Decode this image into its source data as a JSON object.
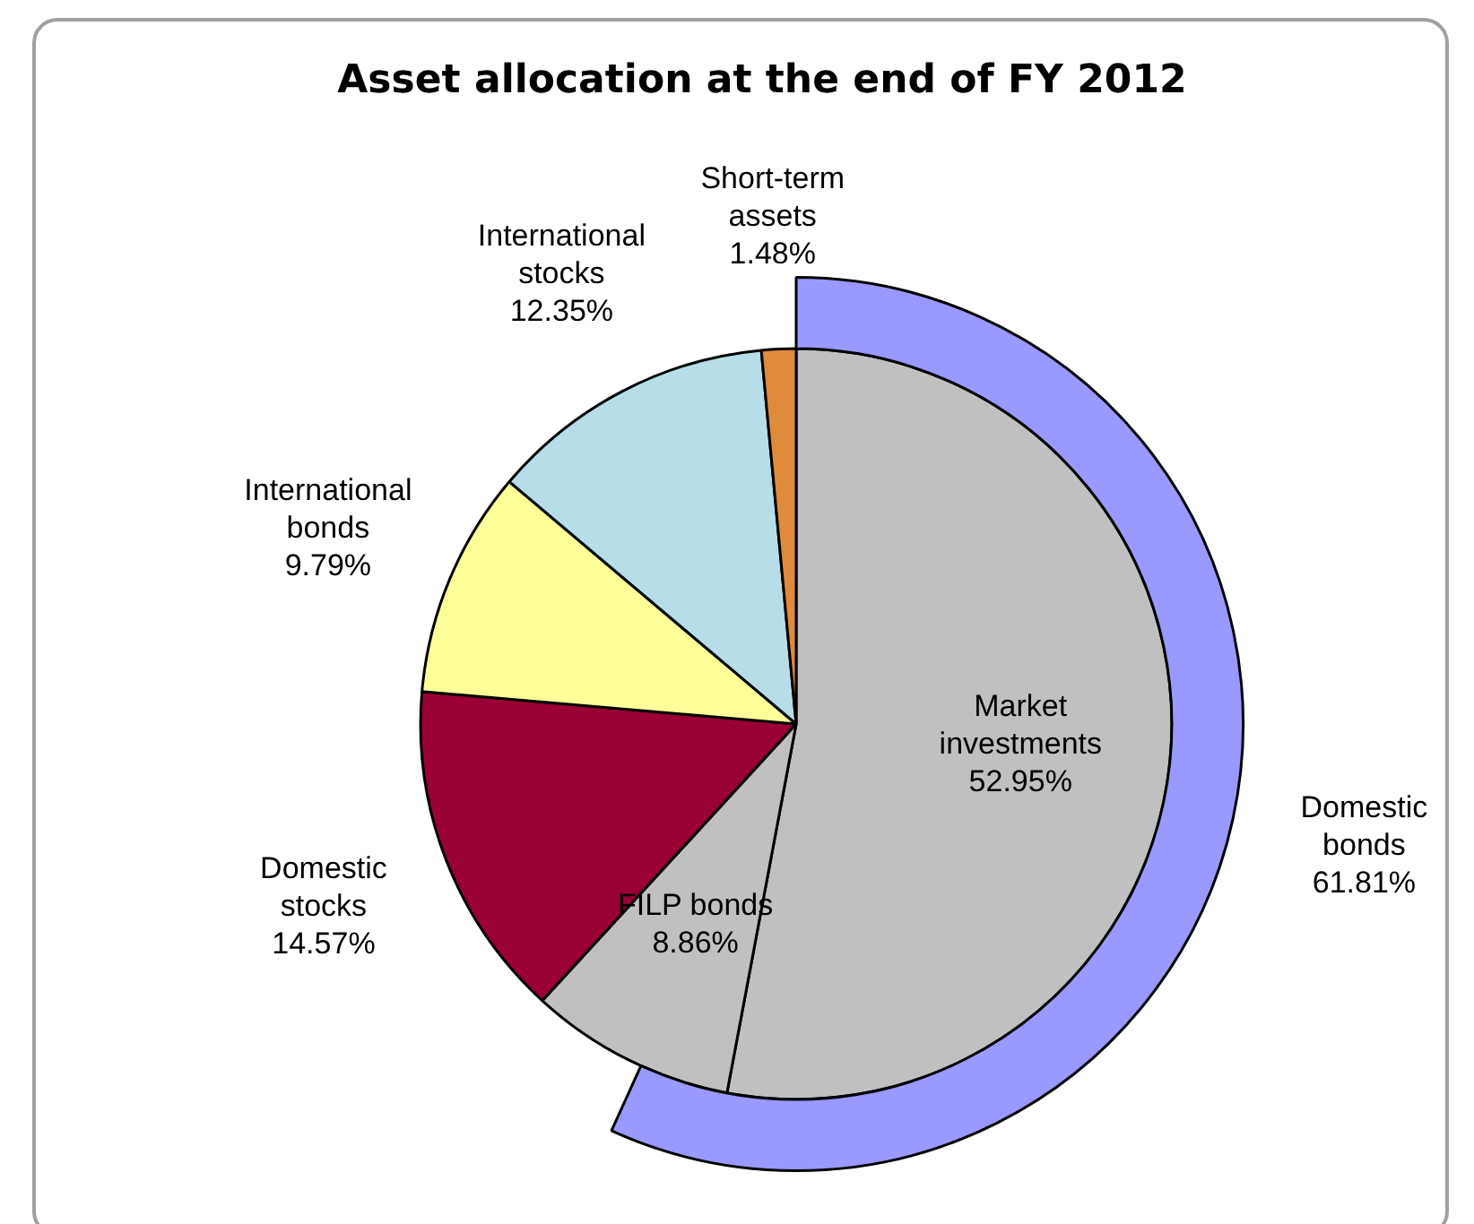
{
  "chart_data": {
    "type": "pie",
    "title": "Asset allocation at the end of FY 2012",
    "categories": [
      "Market investments",
      "FILP bonds",
      "Domestic stocks",
      "International bonds",
      "International stocks",
      "Short-term assets"
    ],
    "series": [
      {
        "type": "pie",
        "values": [
          52.95,
          8.86,
          14.57,
          9.79,
          12.35,
          1.48
        ],
        "colors": [
          "#c0c0c0",
          "#c0c0c0",
          "#990033",
          "#ffff99",
          "#b7dde8",
          "#e08a3c"
        ],
        "value_labels": [
          "52.95%",
          "8.86%",
          "14.57%",
          "9.79%",
          "12.35%",
          "1.48%"
        ]
      },
      {
        "type": "donut",
        "name": "Domestic bonds",
        "values": [
          61.81,
          null,
          null,
          null,
          null,
          null
        ],
        "color": "#9999ff",
        "value_labels": [
          "61.81%",
          null,
          null,
          null,
          null,
          null
        ]
      }
    ],
    "legend": false
  }
}
